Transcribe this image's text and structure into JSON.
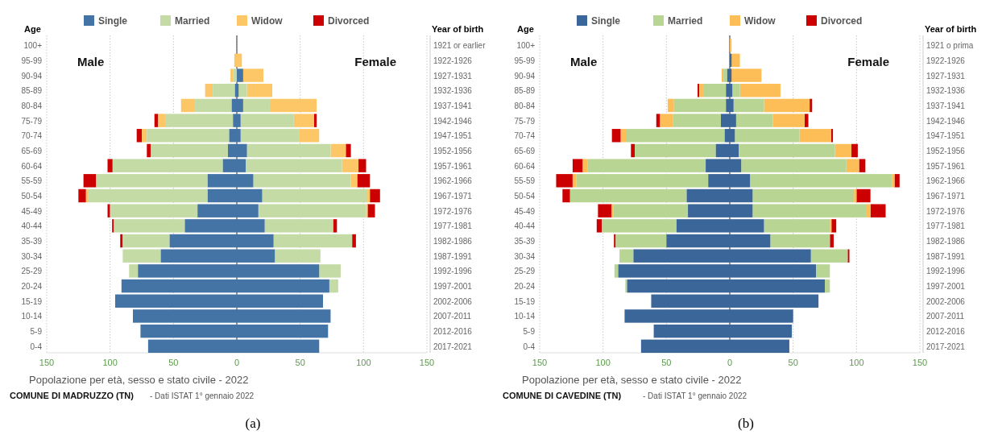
{
  "chart_data": [
    {
      "type": "bar",
      "orientation": "horizontal",
      "stacked": true,
      "title": "Popolazione per età, sesso e stato civile - 2022",
      "subtitle": "COMUNE DI MADRUZZO (TN)",
      "ylabel": "Age",
      "y2label": "Year of birth",
      "annotations": [
        "Male",
        "Female",
        "- Dati ISTAT 1° gennaio 2022",
        "(a)"
      ],
      "categories": [
        "100+",
        "95-99",
        "90-94",
        "85-89",
        "80-84",
        "75-79",
        "70-74",
        "65-69",
        "60-64",
        "55-59",
        "50-54",
        "45-49",
        "40-44",
        "35-39",
        "30-34",
        "25-29",
        "20-24",
        "15-19",
        "10-14",
        "5-9",
        "0-4"
      ],
      "y2_categories": [
        "1921 or earlier",
        "1922-1926",
        "1927-1931",
        "1932-1936",
        "1937-1941",
        "1942-1946",
        "1947-1951",
        "1952-1956",
        "1957-1961",
        "1962-1966",
        "1967-1971",
        "1972-1976",
        "1977-1981",
        "1982-1986",
        "1987-1991",
        "1992-1996",
        "1997-2001",
        "2002-2006",
        "2007-2011",
        "2012-2016",
        "2017-2021"
      ],
      "series": [
        {
          "name": "Single",
          "color": "#4473a5",
          "values": [
            0,
            0,
            0,
            -1,
            -4,
            -3,
            -6,
            -7,
            -11,
            -23,
            -23,
            -31,
            -41,
            -53,
            -60,
            -78,
            -91,
            -96,
            -82,
            -76,
            -70
          ]
        },
        {
          "name": "Married",
          "color": "#c5dba6",
          "values": [
            0,
            0,
            -3,
            -18,
            -29,
            -53,
            -65,
            -61,
            -87,
            -88,
            -94,
            -69,
            -56,
            -37,
            -30,
            -7,
            0,
            0,
            0,
            0,
            0
          ]
        },
        {
          "name": "Widow",
          "color": "#fdc767",
          "values": [
            0,
            -2,
            -2,
            -6,
            -11,
            -6,
            -4,
            0,
            0,
            0,
            -2,
            0,
            0,
            0,
            0,
            0,
            0,
            0,
            0,
            0,
            0
          ]
        },
        {
          "name": "Divorced",
          "color": "#cc0000",
          "values": [
            0,
            0,
            0,
            0,
            0,
            -3,
            -4,
            -3,
            -4,
            -10,
            -6,
            -2,
            -1,
            -2,
            0,
            0,
            0,
            0,
            0,
            0,
            0
          ]
        },
        {
          "color": "#4473a5",
          "values": [
            0,
            0,
            5,
            1,
            5,
            3,
            3,
            8,
            7,
            13,
            20,
            17,
            22,
            29,
            30,
            65,
            73,
            68,
            74,
            72,
            65
          ]
        },
        {
          "color": "#c5dba6",
          "values": [
            0,
            0,
            0,
            7,
            21,
            42,
            46,
            66,
            76,
            77,
            83,
            85,
            54,
            62,
            36,
            17,
            7,
            0,
            0,
            0,
            0
          ]
        },
        {
          "color": "#fdc767",
          "values": [
            0,
            4,
            16,
            20,
            37,
            16,
            16,
            12,
            13,
            5,
            2,
            1,
            0,
            0,
            0,
            0,
            0,
            0,
            0,
            0,
            0
          ]
        },
        {
          "color": "#cc0000",
          "values": [
            0,
            0,
            0,
            0,
            0,
            2,
            0,
            4,
            6,
            10,
            8,
            6,
            3,
            3,
            0,
            0,
            0,
            0,
            0,
            0,
            0
          ]
        }
      ],
      "xlim": [
        -150,
        150
      ],
      "xticks": [
        {
          "value": -150,
          "label": "150"
        },
        {
          "value": -100,
          "label": "100"
        },
        {
          "value": -50,
          "label": "50"
        },
        0,
        50,
        100,
        150
      ],
      "ref_lines": [
        {
          "axis": "x",
          "value": 0,
          "color": "#555555"
        }
      ],
      "grid": "x",
      "legend": "top"
    },
    {
      "type": "bar",
      "orientation": "horizontal",
      "stacked": true,
      "title": "Popolazione per età, sesso e stato civile - 2022",
      "subtitle": "COMUNE DI CAVEDINE (TN)",
      "ylabel": "Age",
      "y2label": "Year of birth",
      "annotations": [
        "Male",
        "Female",
        "- Dati ISTAT 1° gennaio 2022",
        "(b)"
      ],
      "categories": [
        "100+",
        "95-99",
        "90-94",
        "85-89",
        "80-84",
        "75-79",
        "70-74",
        "65-69",
        "60-64",
        "55-59",
        "50-54",
        "45-49",
        "40-44",
        "35-39",
        "30-34",
        "25-29",
        "20-24",
        "15-19",
        "10-14",
        "5-9",
        "0-4"
      ],
      "y2_categories": [
        "1921 o prima",
        "1922-1926",
        "1927-1931",
        "1932-1936",
        "1937-1941",
        "1942-1946",
        "1947-1951",
        "1952-1956",
        "1957-1961",
        "1962-1966",
        "1967-1971",
        "1972-1976",
        "1977-1981",
        "1982-1986",
        "1987-1991",
        "1992-1996",
        "1997-2001",
        "2002-2006",
        "2007-2011",
        "2012-2016",
        "2017-2021"
      ],
      "series": [
        {
          "name": "Single",
          "color": "#3b6699",
          "values": [
            0,
            0,
            -2,
            -3,
            -3,
            -7,
            -4,
            -11,
            -19,
            -17,
            -34,
            -33,
            -42,
            -50,
            -76,
            -88,
            -81,
            -62,
            -83,
            -60,
            -70
          ]
        },
        {
          "name": "Married",
          "color": "#b8d593",
          "values": [
            0,
            0,
            -3,
            -18,
            -41,
            -38,
            -78,
            -64,
            -93,
            -104,
            -92,
            -59,
            -59,
            -40,
            -11,
            -3,
            -1,
            0,
            0,
            0,
            0
          ]
        },
        {
          "name": "Widow",
          "color": "#fdbe57",
          "values": [
            0,
            0,
            -1,
            -3,
            -5,
            -10,
            -4,
            0,
            -4,
            -3,
            0,
            -1,
            0,
            0,
            0,
            0,
            0,
            0,
            0,
            0,
            0
          ]
        },
        {
          "name": "Divorced",
          "color": "#cc0000",
          "values": [
            0,
            0,
            0,
            -1,
            0,
            -3,
            -7,
            -3,
            -8,
            -13,
            -6,
            -11,
            -4,
            -1,
            0,
            0,
            0,
            0,
            0,
            0,
            0
          ]
        },
        {
          "color": "#3b6699",
          "values": [
            0,
            1,
            1,
            2,
            3,
            5,
            4,
            7,
            9,
            16,
            18,
            18,
            27,
            32,
            64,
            68,
            75,
            70,
            50,
            49,
            47
          ]
        },
        {
          "color": "#b8d593",
          "values": [
            0,
            0,
            0,
            6,
            24,
            29,
            51,
            76,
            83,
            112,
            80,
            90,
            52,
            47,
            29,
            11,
            4,
            0,
            0,
            0,
            0
          ]
        },
        {
          "color": "#fdbe57",
          "values": [
            1,
            7,
            24,
            32,
            36,
            25,
            25,
            13,
            10,
            2,
            2,
            3,
            1,
            0,
            0,
            0,
            0,
            0,
            0,
            0,
            0
          ]
        },
        {
          "color": "#cc0000",
          "values": [
            0,
            0,
            0,
            0,
            2,
            3,
            1,
            5,
            5,
            4,
            11,
            12,
            4,
            3,
            1,
            0,
            0,
            0,
            0,
            0,
            0
          ]
        }
      ],
      "xlim": [
        -150,
        150
      ],
      "xticks": [
        {
          "value": -150,
          "label": "150"
        },
        {
          "value": -100,
          "label": "100"
        },
        {
          "value": -50,
          "label": "50"
        },
        0,
        50,
        100,
        150
      ],
      "ref_lines": [
        {
          "axis": "x",
          "value": 0,
          "color": "#555555"
        }
      ],
      "grid": "x",
      "legend": "top"
    }
  ]
}
